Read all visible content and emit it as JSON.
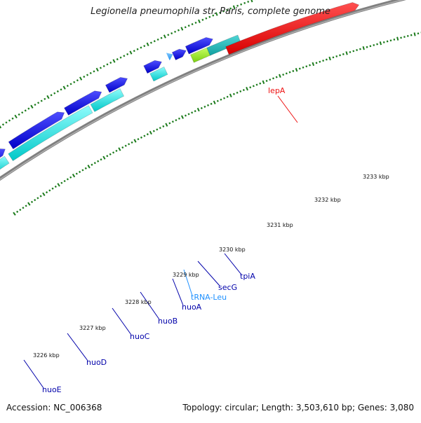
{
  "title": "Legionella pneumophila str. Paris, complete genome",
  "footer": {
    "accession": "Accession: NC_006368",
    "summary": "Topology: circular; Length: 3,503,610 bp; Genes: 3,080"
  },
  "colors": {
    "background": "#ffffff",
    "backbone": "#808080",
    "tick": "#1a7a1a",
    "gene_cds": "#0000ee",
    "gene_cds_alt": "#00e0e0",
    "gene_rna": "#40a0ff",
    "gene_highlight": "#ee1111",
    "gene_misc": "#99ee22",
    "label_text": "#0000aa"
  },
  "scale_labels": [
    "3226 kbp",
    "3227 kbp",
    "3228 kbp",
    "3229 kbp",
    "3230 kbp",
    "3231 kbp",
    "3232 kbp",
    "3233 kbp"
  ],
  "genes": [
    {
      "name": "nuoE",
      "color": "#0000aa"
    },
    {
      "name": "nuoD",
      "color": "#0000aa"
    },
    {
      "name": "nuoC",
      "color": "#0000aa"
    },
    {
      "name": "nuoB",
      "color": "#0000aa"
    },
    {
      "name": "nuoA",
      "color": "#0000aa"
    },
    {
      "name": "tRNA-Leu",
      "color": "#1e90ff"
    },
    {
      "name": "secG",
      "color": "#0000aa"
    },
    {
      "name": "tpiA",
      "color": "#0000aa"
    },
    {
      "name": "lepA",
      "color": "#ee1111"
    }
  ]
}
